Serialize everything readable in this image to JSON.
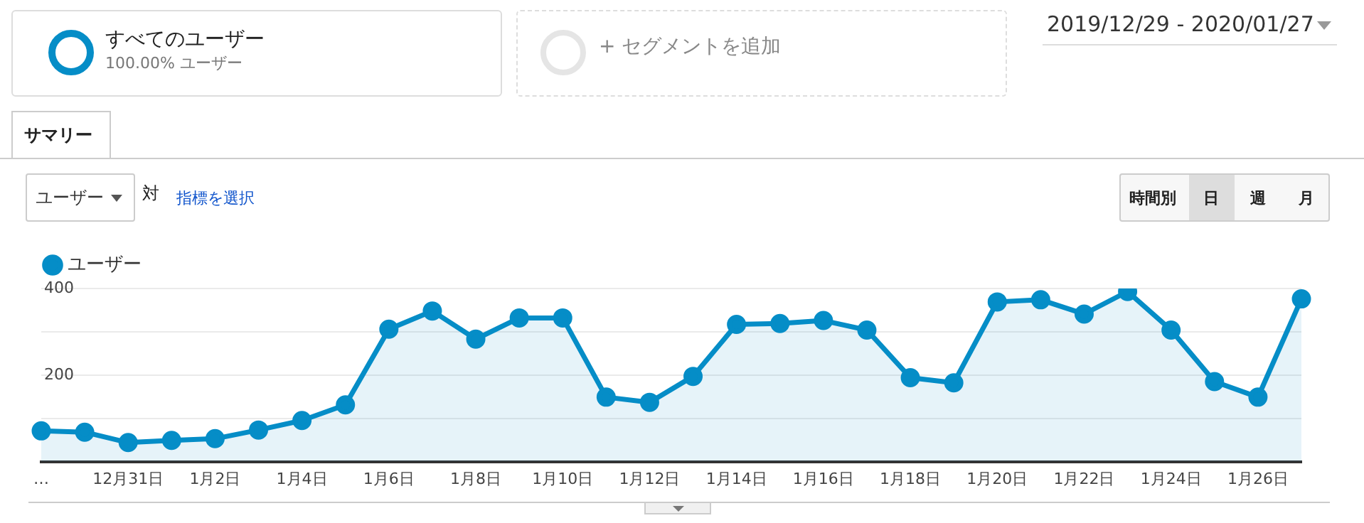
{
  "chart_data": {
    "type": "area",
    "categories": [
      "…",
      null,
      "12月31日",
      null,
      "1月2日",
      null,
      "1月4日",
      null,
      "1月6日",
      null,
      "1月8日",
      null,
      "1月10日",
      null,
      "1月12日",
      null,
      "1月14日",
      null,
      "1月16日",
      null,
      "1月18日",
      null,
      "1月20日",
      null,
      "1月22日",
      null,
      "1月24日",
      null,
      "1月26日",
      null
    ],
    "series": [
      {
        "name": "ユーザー",
        "color": "#058dc7",
        "values": [
          71,
          68,
          44,
          49,
          53,
          73,
          95,
          131,
          306,
          348,
          283,
          332,
          332,
          149,
          137,
          197,
          317,
          319,
          326,
          304,
          194,
          182,
          369,
          374,
          341,
          393,
          304,
          185,
          149,
          376
        ]
      }
    ],
    "ylim": [
      0,
      400
    ],
    "yticks": [
      {
        "value": 100,
        "label": null
      },
      200,
      {
        "value": 300,
        "label": null
      },
      400
    ],
    "grid": "y",
    "legend": "top left",
    "marker": "circle",
    "annotations": [
      "すべてのユーザー",
      "100.00% ユーザー",
      "+ セグメントを追加",
      "2019/12/29 - 2020/01/27",
      "サマリー",
      "ユーザー",
      "対",
      "指標を選択",
      "時間別",
      "日",
      "週",
      "月"
    ]
  }
}
